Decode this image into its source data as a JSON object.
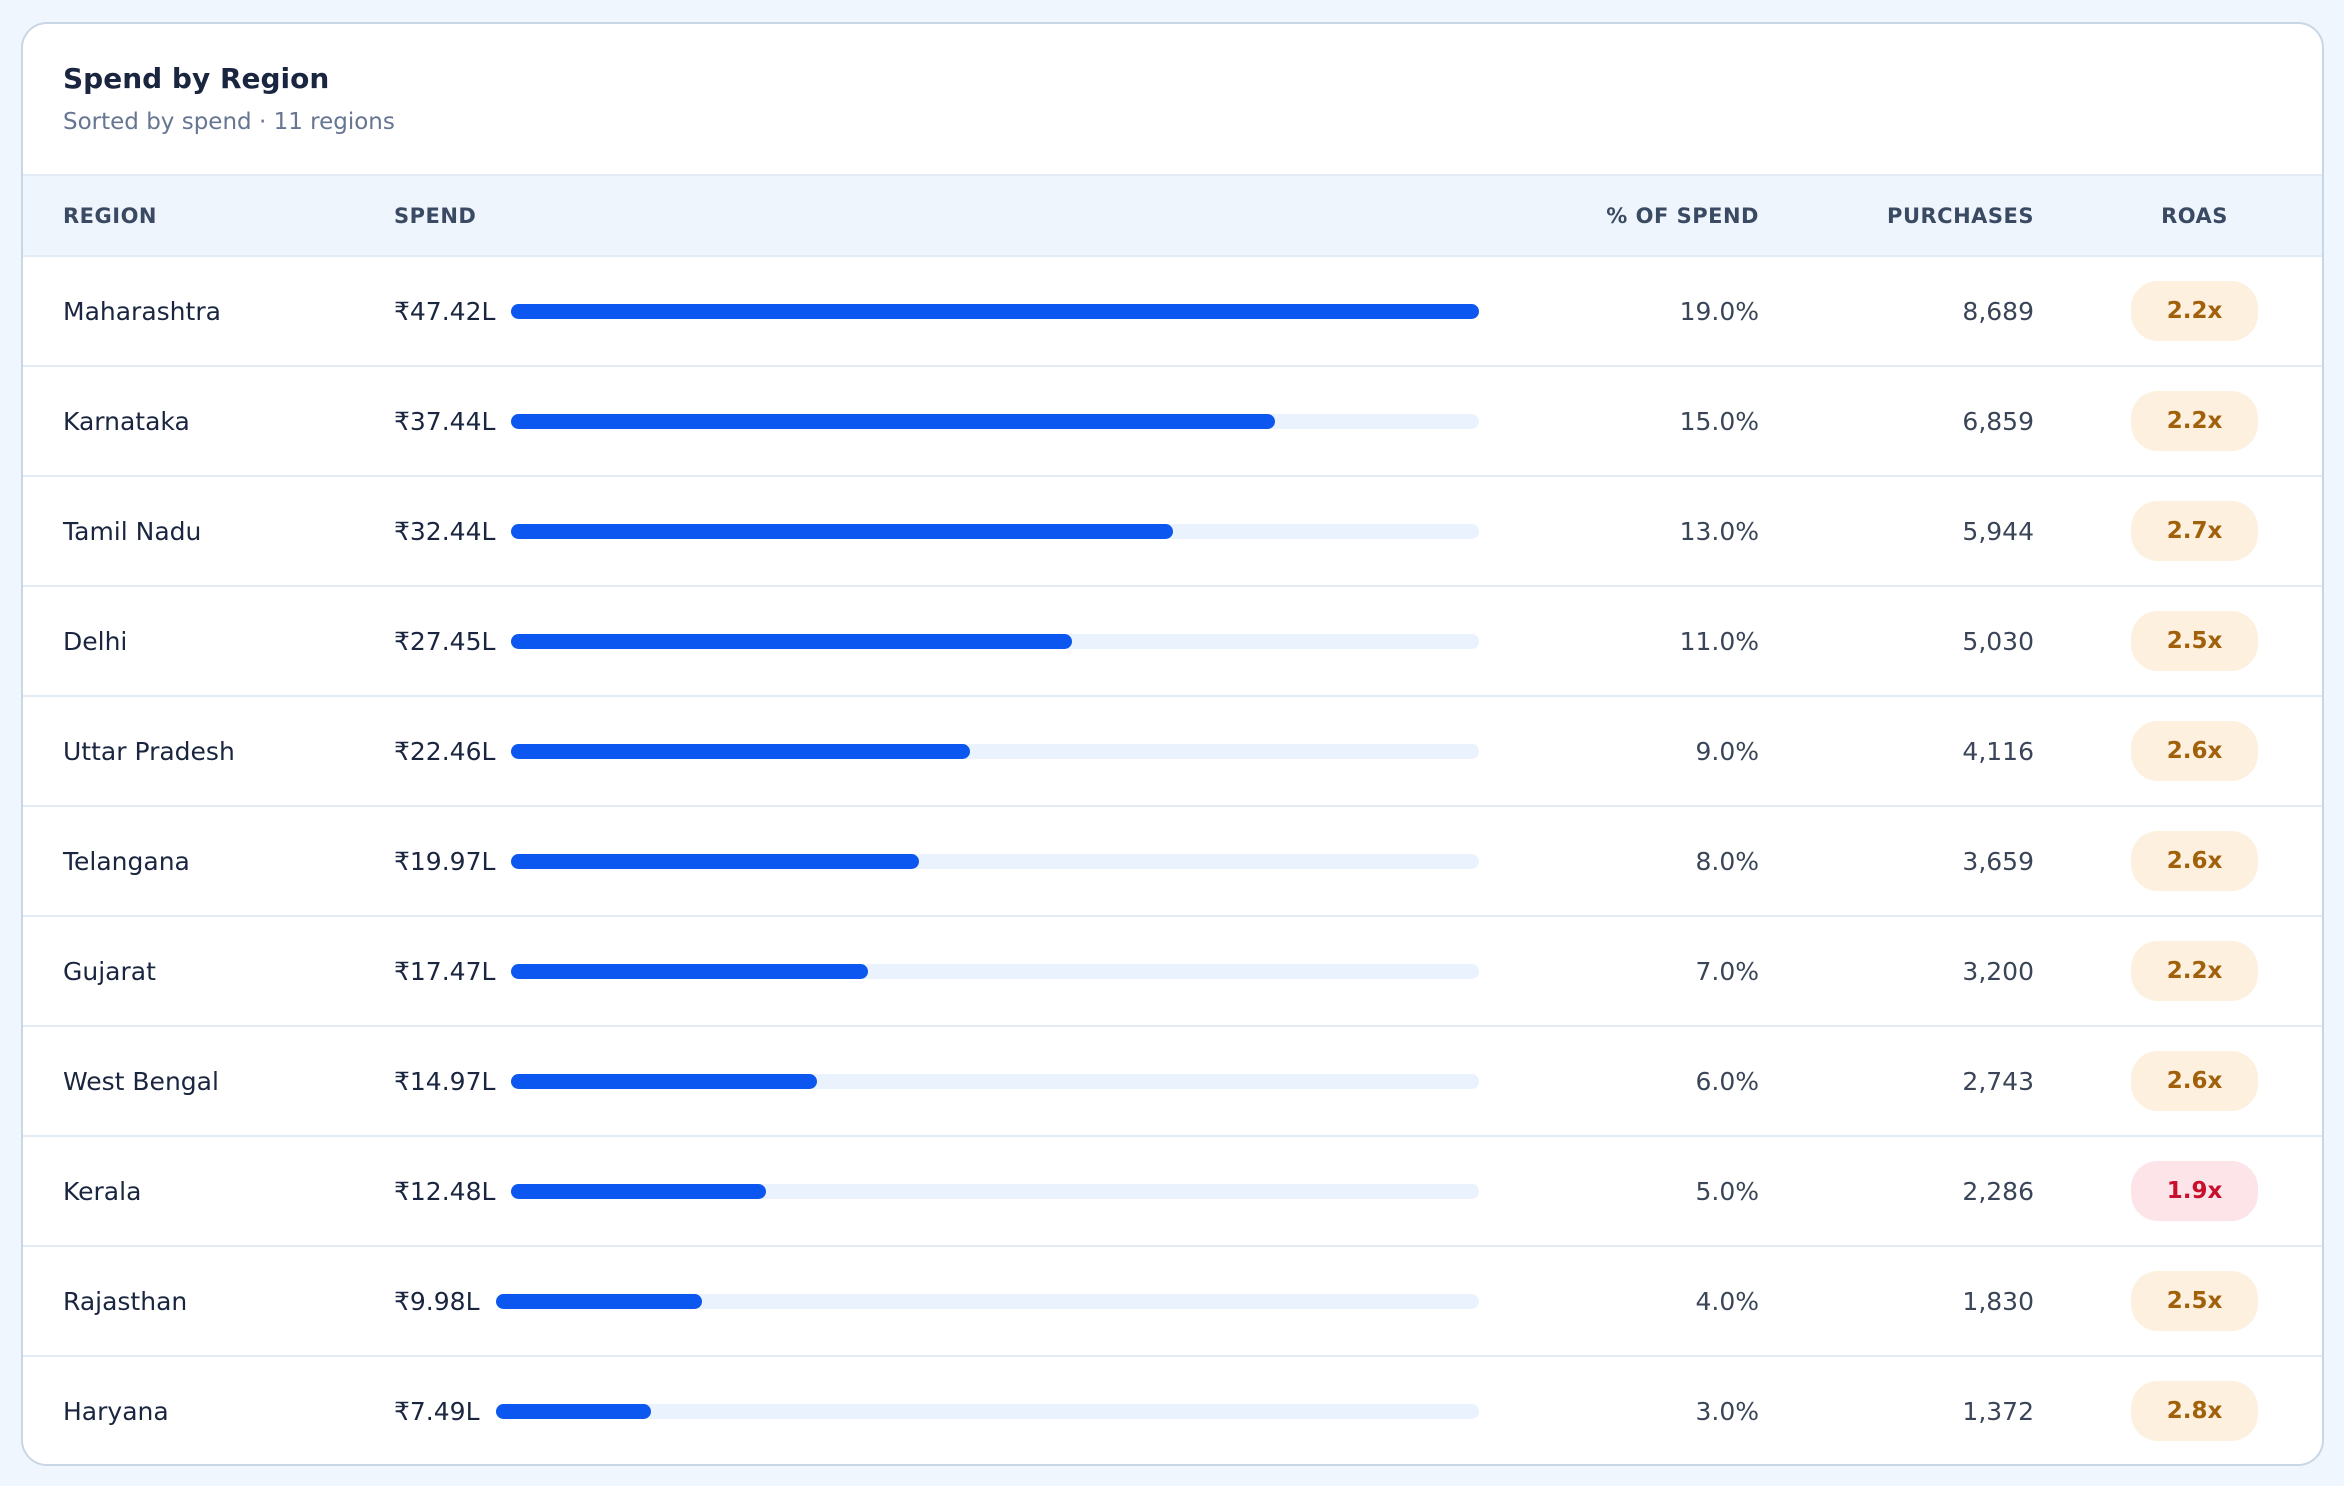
{
  "header": {
    "title": "Spend by Region",
    "subtitle": "Sorted by spend · 11 regions"
  },
  "table": {
    "columns": [
      "REGION",
      "SPEND",
      "% OF SPEND",
      "PURCHASES",
      "ROAS"
    ],
    "bar_color": "#0b57f0",
    "track_color": "#eaf2fd",
    "rows": [
      {
        "region": "Maharashtra",
        "spend": {
          "value": 47.42,
          "label": "₹47.42L"
        },
        "share": "19.0%",
        "purchases": "8,689",
        "roas": "2.2x",
        "roas_colors": [
          "#fdf0de",
          "#a1600a"
        ]
      },
      {
        "region": "Karnataka",
        "spend": {
          "value": 37.44,
          "label": "₹37.44L"
        },
        "share": "15.0%",
        "purchases": "6,859",
        "roas": "2.2x",
        "roas_colors": [
          "#fdf0de",
          "#a1600a"
        ]
      },
      {
        "region": "Tamil Nadu",
        "spend": {
          "value": 32.44,
          "label": "₹32.44L"
        },
        "share": "13.0%",
        "purchases": "5,944",
        "roas": "2.7x",
        "roas_colors": [
          "#fdf0de",
          "#a1600a"
        ]
      },
      {
        "region": "Delhi",
        "spend": {
          "value": 27.45,
          "label": "₹27.45L"
        },
        "share": "11.0%",
        "purchases": "5,030",
        "roas": "2.5x",
        "roas_colors": [
          "#fdf0de",
          "#a1600a"
        ]
      },
      {
        "region": "Uttar Pradesh",
        "spend": {
          "value": 22.46,
          "label": "₹22.46L"
        },
        "share": "9.0%",
        "purchases": "4,116",
        "roas": "2.6x",
        "roas_colors": [
          "#fdf0de",
          "#a1600a"
        ]
      },
      {
        "region": "Telangana",
        "spend": {
          "value": 19.97,
          "label": "₹19.97L"
        },
        "share": "8.0%",
        "purchases": "3,659",
        "roas": "2.6x",
        "roas_colors": [
          "#fdf0de",
          "#a1600a"
        ]
      },
      {
        "region": "Gujarat",
        "spend": {
          "value": 17.47,
          "label": "₹17.47L"
        },
        "share": "7.0%",
        "purchases": "3,200",
        "roas": "2.2x",
        "roas_colors": [
          "#fdf0de",
          "#a1600a"
        ]
      },
      {
        "region": "West Bengal",
        "spend": {
          "value": 14.97,
          "label": "₹14.97L"
        },
        "share": "6.0%",
        "purchases": "2,743",
        "roas": "2.6x",
        "roas_colors": [
          "#fdf0de",
          "#a1600a"
        ]
      },
      {
        "region": "Kerala",
        "spend": {
          "value": 12.48,
          "label": "₹12.48L"
        },
        "share": "5.0%",
        "purchases": "2,286",
        "roas": "1.9x",
        "roas_colors": [
          "#fde4e8",
          "#c8102e"
        ]
      },
      {
        "region": "Rajasthan",
        "spend": {
          "value": 9.98,
          "label": "₹9.98L"
        },
        "share": "4.0%",
        "purchases": "1,830",
        "roas": "2.5x",
        "roas_colors": [
          "#fdf0de",
          "#a1600a"
        ]
      },
      {
        "region": "Haryana",
        "spend": {
          "value": 7.49,
          "label": "₹7.49L"
        },
        "share": "3.0%",
        "purchases": "1,372",
        "roas": "2.8x",
        "roas_colors": [
          "#fdf0de",
          "#a1600a"
        ]
      }
    ]
  }
}
